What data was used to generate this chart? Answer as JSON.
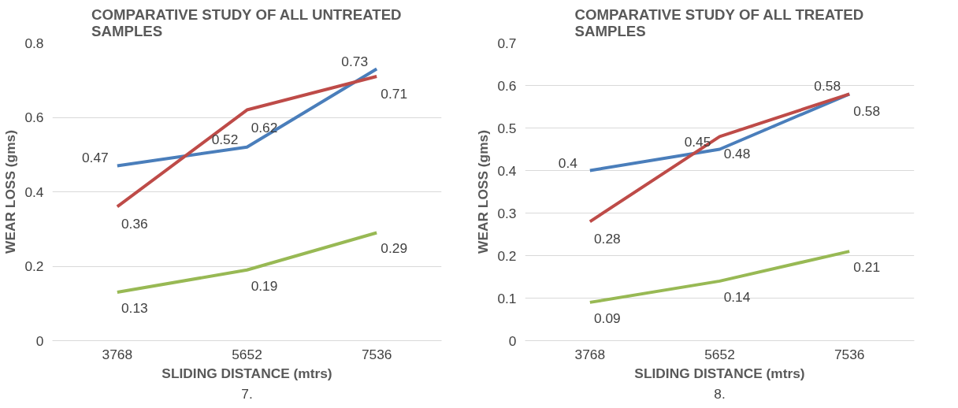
{
  "chart_data": [
    {
      "type": "line",
      "title": "COMPARATIVE STUDY OF ALL UNTREATED SAMPLES",
      "xlabel": "SLIDING DISTANCE (mtrs)",
      "ylabel": "WEAR LOSS (gms)",
      "categories": [
        "3768",
        "5652",
        "7536"
      ],
      "series": [
        {
          "color": "#4a7ebb",
          "values": [
            0.47,
            0.52,
            0.73
          ]
        },
        {
          "color": "#be4b48",
          "values": [
            0.36,
            0.62,
            0.71
          ]
        },
        {
          "color": "#98b954",
          "values": [
            0.13,
            0.19,
            0.29
          ]
        }
      ],
      "ylim": [
        0,
        0.8
      ],
      "yticks": [
        0,
        0.2,
        0.4,
        0.6,
        0.8
      ],
      "grid": "y",
      "data_labels": true,
      "marker": "none",
      "line_style": "solid",
      "annotations": [
        "7."
      ]
    },
    {
      "type": "line",
      "title": "COMPARATIVE STUDY OF ALL TREATED SAMPLES",
      "xlabel": "SLIDING DISTANCE (mtrs)",
      "ylabel": "WEAR LOSS (gms)",
      "categories": [
        "3768",
        "5652",
        "7536"
      ],
      "series": [
        {
          "color": "#4a7ebb",
          "values": [
            0.4,
            0.45,
            0.58
          ]
        },
        {
          "color": "#be4b48",
          "values": [
            0.28,
            0.48,
            0.58
          ]
        },
        {
          "color": "#98b954",
          "values": [
            0.09,
            0.14,
            0.21
          ]
        }
      ],
      "ylim": [
        0,
        0.7
      ],
      "yticks": [
        0,
        0.1,
        0.2,
        0.3,
        0.4,
        0.5,
        0.6,
        0.7
      ],
      "grid": "y",
      "data_labels": true,
      "marker": "none",
      "line_style": "solid",
      "annotations": [
        "8."
      ]
    }
  ]
}
